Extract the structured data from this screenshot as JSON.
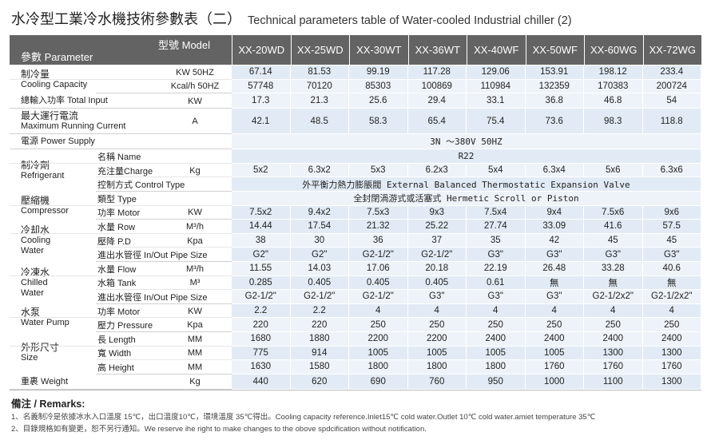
{
  "title": {
    "zh": "水冷型工業冷水機技術參數表（二）",
    "en": "Technical parameters table of Water-cooled Industrial chiller (2)"
  },
  "header": {
    "model_label": "型號 Model",
    "param_label": "參數 Parameter",
    "models": [
      "XX-20WD",
      "XX-25WD",
      "XX-30WT",
      "XX-36WT",
      "XX-40WF",
      "XX-50WF",
      "XX-60WG",
      "XX-72WG"
    ]
  },
  "groups": [
    {
      "label": [
        "制冷量",
        "Cooling Capacity"
      ],
      "rows": [
        {
          "unit": "KW 50HZ",
          "values": [
            "67.14",
            "81.53",
            "99.19",
            "117.28",
            "129.06",
            "153.91",
            "198.12",
            "233.4"
          ]
        },
        {
          "unit": "Kcal/h 50HZ",
          "values": [
            "57748",
            "70120",
            "85303",
            "100869",
            "110984",
            "132359",
            "170383",
            "200724"
          ]
        }
      ]
    },
    {
      "label": [
        "總輸入功率 Total Input"
      ],
      "rows": [
        {
          "unit": "KW",
          "values": [
            "17.3",
            "21.3",
            "25.6",
            "29.4",
            "33.1",
            "36.8",
            "46.8",
            "54"
          ]
        }
      ]
    },
    {
      "label": [
        "最大運行電流",
        "Maximum Running Current"
      ],
      "rows": [
        {
          "unit": "A",
          "values": [
            "42.1",
            "48.5",
            "58.3",
            "65.4",
            "75.4",
            "73.6",
            "98.3",
            "118.8"
          ]
        }
      ]
    },
    {
      "label": [
        "電源 Power Supply"
      ],
      "rows": [
        {
          "span": "3N ～380V 50HZ"
        }
      ]
    },
    {
      "label": [
        "制冷劑",
        "Refrigerant"
      ],
      "rows": [
        {
          "item": "名稱 Name",
          "span": "R22"
        },
        {
          "item": "充注量Charge",
          "unit": "Kg",
          "values": [
            "5x2",
            "6.3x2",
            "5x3",
            "6.2x3",
            "5x4",
            "6.3x4",
            "5x6",
            "6.3x6"
          ]
        },
        {
          "item": "控制方式 Control Type",
          "span": "外平衡力熱力膨脹閥 External Balanced Thermostatic Expansion Valve"
        }
      ]
    },
    {
      "label": [
        "壓縮機",
        "Compressor"
      ],
      "rows": [
        {
          "item": "類型 Type",
          "span": "全封閉渦游式或活塞式 Hermetic Scroll or Piston"
        },
        {
          "item": "功率 Motor",
          "unit": "KW",
          "values": [
            "7.5x2",
            "9.4x2",
            "7.5x3",
            "9x3",
            "7.5x4",
            "9x4",
            "7.5x6",
            "9x6"
          ]
        }
      ]
    },
    {
      "label": [
        "冷却水",
        "Cooling",
        "Water"
      ],
      "rows": [
        {
          "item": "水量 Row",
          "unit": "M³/h",
          "values": [
            "14.44",
            "17.54",
            "21.32",
            "25.22",
            "27.74",
            "33.09",
            "41.6",
            "57.5"
          ]
        },
        {
          "item": "壓降 P.D",
          "unit": "Kpa",
          "values": [
            "38",
            "30",
            "36",
            "37",
            "35",
            "42",
            "45",
            "45"
          ]
        },
        {
          "item": "進出水管徑 In/Out Pipe Size",
          "values": [
            "G2\"",
            "G2\"",
            "G2-1/2\"",
            "G2-1/2\"",
            "G3\"",
            "G3\"",
            "G3\"",
            "G3\""
          ]
        }
      ]
    },
    {
      "label": [
        "冷凍水",
        "Chilled",
        "Water"
      ],
      "rows": [
        {
          "item": "水量 Flow",
          "unit": "M³/h",
          "values": [
            "11.55",
            "14.03",
            "17.06",
            "20.18",
            "22.19",
            "26.48",
            "33.28",
            "40.6"
          ]
        },
        {
          "item": "水箱 Tank",
          "unit": "M³",
          "values": [
            "0.285",
            "0.405",
            "0.405",
            "0.405",
            "0.61",
            "無",
            "無",
            "無"
          ]
        },
        {
          "item": "進出水管徑 In/Out Pipe Size",
          "values": [
            "G2-1/2\"",
            "G2-1/2\"",
            "G2-1/2\"",
            "G3\"",
            "G3\"",
            "G3\"",
            "G2-1/2x2\"",
            "G2-1/2x2\""
          ]
        }
      ]
    },
    {
      "label": [
        "水泵",
        "Water Pump"
      ],
      "rows": [
        {
          "item": "功率 Motor",
          "unit": "KW",
          "values": [
            "2.2",
            "2.2",
            "4",
            "4",
            "4",
            "4",
            "4",
            "4"
          ]
        },
        {
          "item": "壓力 Pressure",
          "unit": "Kpa",
          "values": [
            "220",
            "220",
            "250",
            "250",
            "250",
            "250",
            "250",
            "250"
          ]
        }
      ]
    },
    {
      "label": [
        "外形尺寸",
        "Size"
      ],
      "rows": [
        {
          "item": "長 Length",
          "unit": "MM",
          "values": [
            "1680",
            "1880",
            "2200",
            "2200",
            "2400",
            "2400",
            "2400",
            "2400"
          ]
        },
        {
          "item": "寬 Width",
          "unit": "MM",
          "values": [
            "775",
            "914",
            "1005",
            "1005",
            "1005",
            "1005",
            "1300",
            "1300"
          ]
        },
        {
          "item": "高 Height",
          "unit": "MM",
          "values": [
            "1630",
            "1580",
            "1800",
            "1800",
            "1800",
            "1760",
            "1760",
            "1760"
          ]
        }
      ]
    },
    {
      "label": [
        "重裹 Weight"
      ],
      "rows": [
        {
          "unit": "Kg",
          "values": [
            "440",
            "620",
            "690",
            "760",
            "950",
            "1000",
            "1100",
            "1300"
          ]
        }
      ]
    }
  ],
  "remarks": {
    "title": "備注 / Remarks:",
    "lines": [
      "1、名義制冷是依據冰水入口溫度 15℃，出口溫度10℃，環境溫度 35℃得出。Cooling capacity reference.Inlet15℃ cold water.Outlet 10℃ cold water.amiet temperature 35℃",
      "2、目錄規格如有變更，恕不另行通知。We reserve ihe right to make changes to the obove spdcification without notification."
    ]
  }
}
